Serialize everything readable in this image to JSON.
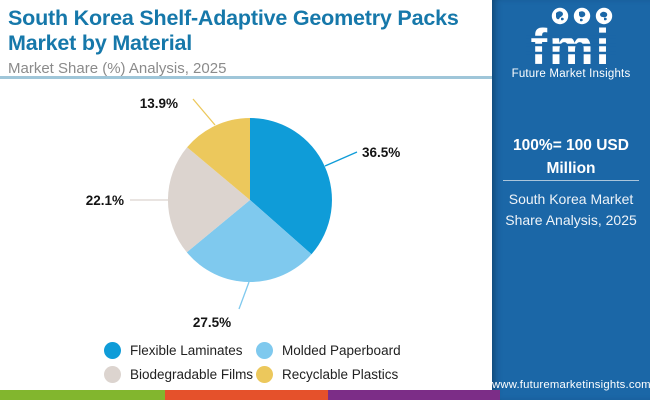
{
  "header": {
    "title": "South Korea Shelf-Adaptive Geometry Packs Market by Material",
    "subtitle": "Market Share (%) Analysis, 2025"
  },
  "chart_data": {
    "type": "pie",
    "title": "South Korea Shelf-Adaptive Geometry Packs Market by Material",
    "subtitle": "Market Share (%) Analysis, 2025",
    "unit_note": "100%= 100 USD Million",
    "start_angle_deg": 0,
    "direction": "clockwise",
    "legend_position": "bottom",
    "slices": [
      {
        "label": "Flexible Laminates",
        "value": 36.5,
        "color": "#0f9cd8"
      },
      {
        "label": "Molded Paperboard",
        "value": 27.5,
        "color": "#7fc9ee"
      },
      {
        "label": "Biodegradable Films",
        "value": 22.1,
        "color": "#dcd4cf"
      },
      {
        "label": "Recyclable Plastics",
        "value": 13.9,
        "color": "#ecc85c"
      }
    ]
  },
  "sidebar": {
    "logo_text": "fmi",
    "logo_caption": "Future Market Insights",
    "unit_note": "100%= 100 USD Million",
    "caption": "South Korea Market Share Analysis, 2025",
    "website": "www.futuremarketinsights.com"
  },
  "colors": {
    "title": "#1678aa",
    "subtitle": "#8b8b8b",
    "header_underline": "#9fc6d9",
    "sidebar_bg": "#1b67a7",
    "footer_stripes": [
      "#82b62e",
      "#e5512b",
      "#7c2d87"
    ]
  }
}
